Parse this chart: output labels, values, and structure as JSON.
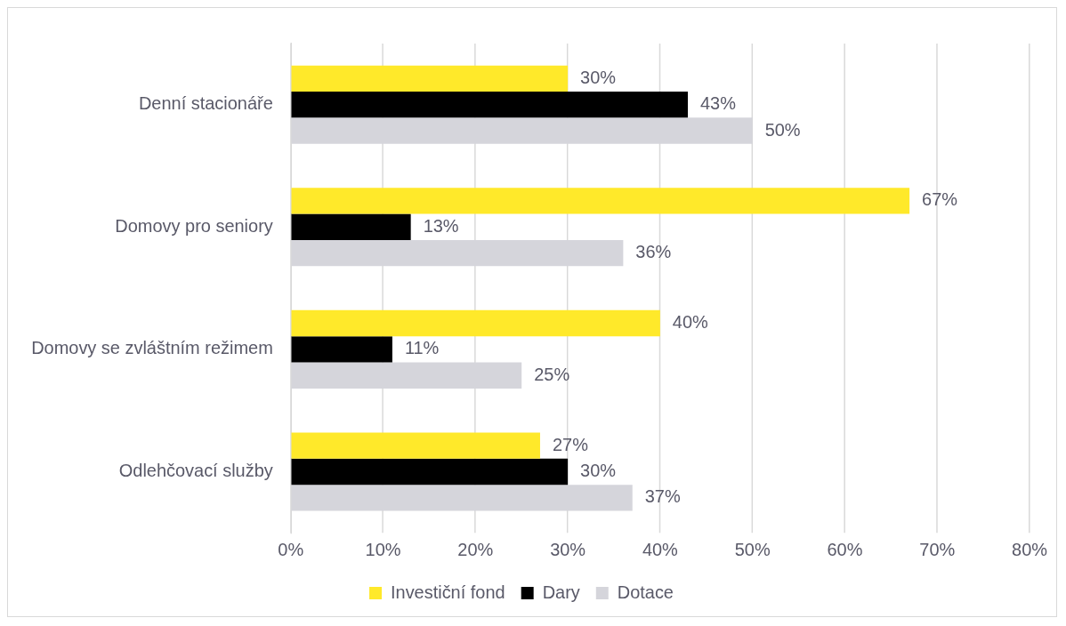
{
  "chart_data": {
    "type": "bar",
    "orientation": "horizontal",
    "categories": [
      "Denní stacionáře",
      "Domovy pro seniory",
      "Domovy se zvláštním režimem",
      "Odlehčovací služby"
    ],
    "series": [
      {
        "name": "Investiční fond",
        "color": "#ffe92a",
        "values": [
          30,
          67,
          40,
          27
        ],
        "value_labels": [
          "30%",
          "67%",
          "40%",
          "27%"
        ]
      },
      {
        "name": "Dary",
        "color": "#000000",
        "values": [
          43,
          13,
          11,
          30
        ],
        "value_labels": [
          "43%",
          "13%",
          "11%",
          "30%"
        ]
      },
      {
        "name": "Dotace",
        "color": "#d5d5db",
        "values": [
          50,
          36,
          25,
          37
        ],
        "value_labels": [
          "50%",
          "36%",
          "25%",
          "37%"
        ]
      }
    ],
    "xlim": [
      0,
      80
    ],
    "xticks": [
      {
        "value": 0,
        "label": "0%"
      },
      {
        "value": 10,
        "label": "10%"
      },
      {
        "value": 20,
        "label": "20%"
      },
      {
        "value": 30,
        "label": "30%"
      },
      {
        "value": 40,
        "label": "40%"
      },
      {
        "value": 50,
        "label": "50%"
      },
      {
        "value": 60,
        "label": "60%"
      },
      {
        "value": 70,
        "label": "70%"
      },
      {
        "value": 80,
        "label": "80%"
      }
    ],
    "grid": "x",
    "legend": "bottom"
  }
}
